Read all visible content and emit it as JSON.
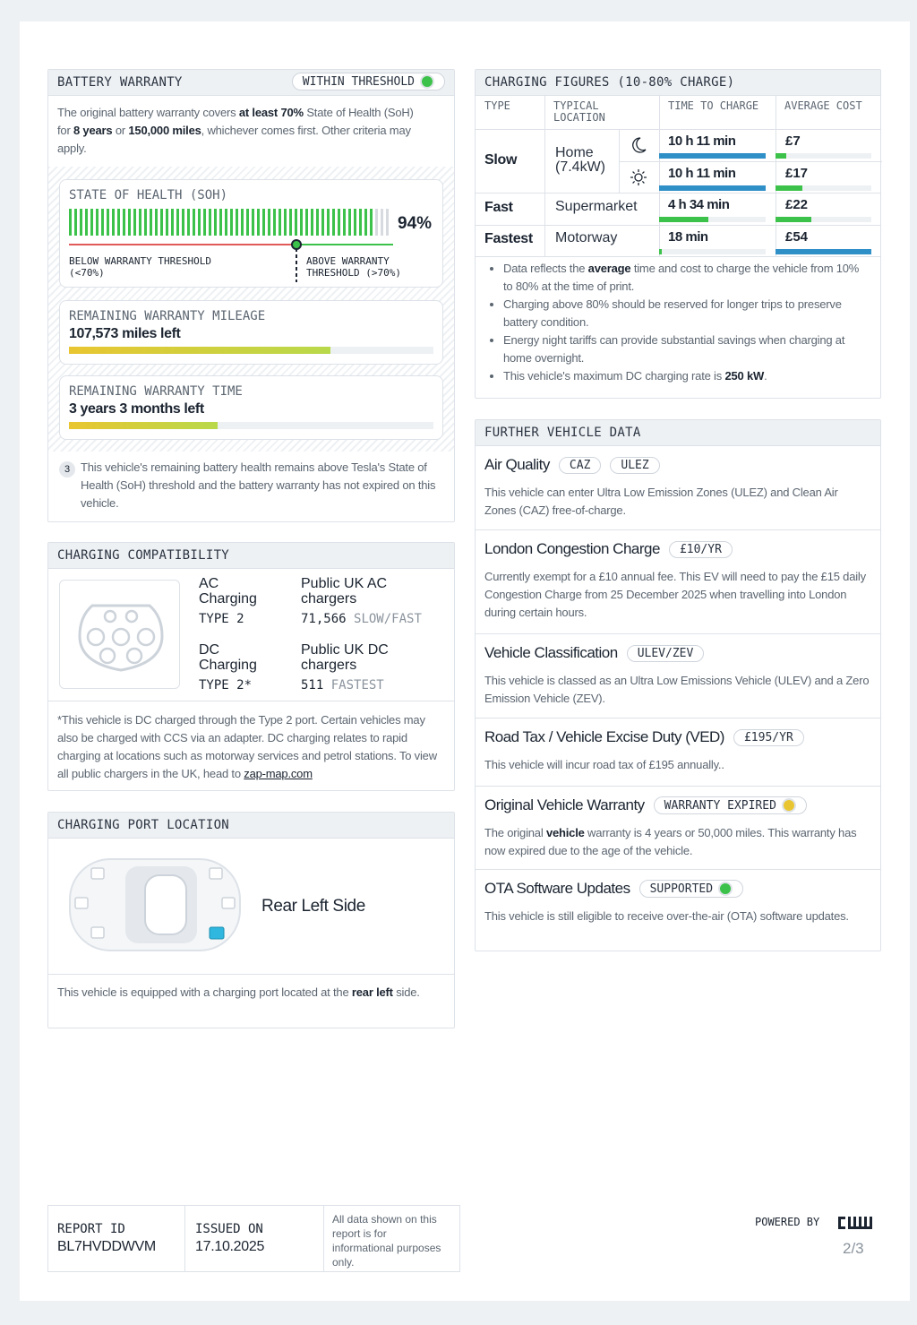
{
  "battery_warranty": {
    "title": "BATTERY WARRANTY",
    "status": "WITHIN THRESHOLD",
    "intro": [
      "The original battery warranty covers ",
      "at least 70%",
      " State of Health (SoH) for ",
      "8 years",
      " or ",
      "150,000 miles",
      ", whichever comes first. Other criteria may apply."
    ],
    "soh": {
      "label": "STATE OF HEALTH (SOH)",
      "value": "94%",
      "below": "BELOW WARRANTY THRESHOLD (<70%)",
      "above": "ABOVE WARRANTY THRESHOLD (>70%)"
    },
    "mileage": {
      "label": "REMAINING WARRANTY MILEAGE",
      "value": "107,573 miles left"
    },
    "time": {
      "label": "REMAINING WARRANTY TIME",
      "value": "3 years 3 months left"
    },
    "note_number": "3",
    "note": "This vehicle's remaining battery health remains above Tesla's State of Health (SoH) threshold and the battery warranty has not expired on this vehicle."
  },
  "charging_compatibility": {
    "title": "CHARGING COMPATIBILITY",
    "ac": {
      "name": "AC Charging",
      "type": "TYPE 2",
      "chargers": "Public UK AC chargers",
      "count": "71,566",
      "speed": "SLOW/FAST"
    },
    "dc": {
      "name": "DC Charging",
      "type": "TYPE 2*",
      "chargers": "Public UK DC chargers",
      "count": "511",
      "speed": "FASTEST"
    },
    "footnote": "*This vehicle is DC charged through the Type 2 port. Certain vehicles may also be charged with CCS via an adapter. DC charging relates to rapid charging at locations such as motorway services and petrol stations. To view all public chargers in the UK, head to ",
    "link": "zap-map.com"
  },
  "charging_port": {
    "title": "CHARGING PORT LOCATION",
    "location": "Rear Left Side",
    "description": [
      "This vehicle is equipped with a charging port located at the ",
      "rear left",
      " side."
    ]
  },
  "charging_figures": {
    "title": "CHARGING FIGURES (10-80% CHARGE)",
    "headers": [
      "TYPE",
      "TYPICAL LOCATION",
      "TIME TO CHARGE",
      "AVERAGE COST"
    ],
    "rows": [
      {
        "type": "Slow",
        "location": "Home (7.4kW)",
        "times": [
          "10 h 11 min",
          "10 h 11 min"
        ],
        "costs": [
          "£7",
          "£17"
        ]
      },
      {
        "type": "Fast",
        "location": "Supermarket",
        "times": [
          "4 h 34 min"
        ],
        "costs": [
          "£22"
        ]
      },
      {
        "type": "Fastest",
        "location": "Motorway",
        "times": [
          "18 min"
        ],
        "costs": [
          "£54"
        ]
      }
    ],
    "notes": [
      [
        "Data reflects the ",
        "average",
        " time and cost to charge the vehicle from 10% to 80% at the time of print."
      ],
      [
        "Charging above 80% should be reserved for longer trips to preserve battery condition."
      ],
      [
        "Energy night tariffs can provide substantial savings when charging at home overnight."
      ],
      [
        "This vehicle's maximum DC charging rate is ",
        "250 kW",
        "."
      ]
    ]
  },
  "further_vehicle_data": {
    "title": "FURTHER VEHICLE DATA",
    "items": [
      {
        "title": "Air Quality",
        "tags": [
          "CAZ",
          "ULEZ"
        ],
        "text": [
          "This vehicle can enter Ultra Low Emission Zones (ULEZ) and Clean Air Zones (CAZ) free-of-charge."
        ]
      },
      {
        "title": "London Congestion Charge",
        "tags": [
          "£10/YR"
        ],
        "text": [
          "Currently exempt for a £10 annual fee. This EV will need to pay the £15 daily Congestion Charge from 25 December 2025 when travelling into London during certain hours."
        ]
      },
      {
        "title": "Vehicle Classification",
        "tags": [
          "ULEV/ZEV"
        ],
        "text": [
          "This vehicle is classed as an Ultra Low Emissions Vehicle (ULEV) and a Zero Emission Vehicle (ZEV)."
        ]
      },
      {
        "title": "Road Tax / Vehicle Excise Duty (VED)",
        "tags": [
          "£195/YR"
        ],
        "text": [
          "This vehicle will incur road tax of £195 annually.."
        ]
      },
      {
        "title": "Original Vehicle Warranty",
        "tags": [
          "WARRANTY EXPIRED"
        ],
        "text": [
          "The original ",
          "vehicle",
          " warranty is 4 years or 50,000 miles. This warranty has now expired due to the age of the vehicle."
        ]
      },
      {
        "title": "OTA Software Updates",
        "tags": [
          "SUPPORTED"
        ],
        "text": [
          "This vehicle is still eligible to receive over-the-air (OTA) software updates."
        ]
      }
    ]
  },
  "footer": {
    "report_id_label": "REPORT ID",
    "report_id": "BL7HVDDWVM",
    "issued_label": "ISSUED ON",
    "issued": "17.10.2025",
    "disclaimer": "All data shown on this report is for informational purposes only.",
    "powered_by": "POWERED BY",
    "page": "2/3"
  }
}
